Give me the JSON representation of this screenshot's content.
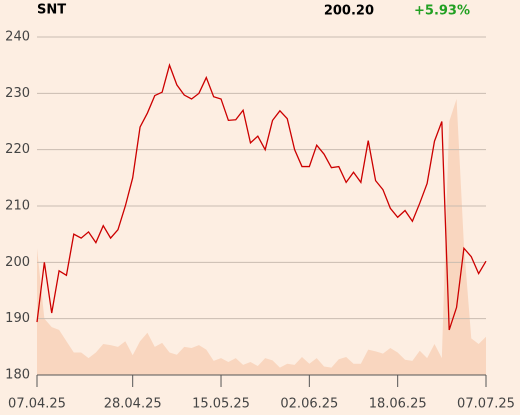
{
  "chart_data": {
    "type": "line",
    "title": "SNT",
    "last_price": "200.20",
    "change": "+5.93%",
    "change_color": "#22a022",
    "categories": [
      "07.04.25",
      null,
      null,
      null,
      null,
      null,
      null,
      null,
      null,
      null,
      null,
      null,
      null,
      "28.04.25",
      null,
      null,
      null,
      null,
      null,
      null,
      null,
      null,
      null,
      null,
      null,
      "15.05.25",
      null,
      null,
      null,
      null,
      null,
      null,
      null,
      null,
      null,
      null,
      null,
      "02.06.25",
      null,
      null,
      null,
      null,
      null,
      null,
      null,
      null,
      null,
      null,
      null,
      "18.06.25",
      null,
      null,
      null,
      null,
      null,
      null,
      null,
      null,
      null,
      null,
      null,
      "07.07.25"
    ],
    "series": [
      {
        "color": "#cc0000",
        "values": [
          189.4,
          200,
          191,
          198.5,
          197.7,
          205,
          204.3,
          205.4,
          203.5,
          206.5,
          204.3,
          205.8,
          210,
          215,
          224,
          226.5,
          229.6,
          230.2,
          235,
          231.5,
          229.7,
          229,
          230,
          232.8,
          229.4,
          229,
          225.2,
          225.3,
          227,
          221.2,
          222.4,
          220,
          225.2,
          226.9,
          225.5,
          220,
          217,
          217,
          220.8,
          219.2,
          216.8,
          217,
          214.2,
          216,
          214.2,
          221.6,
          214.5,
          212.9,
          209.6,
          208,
          209.2,
          207.3,
          210.5,
          214,
          221.5,
          225,
          188,
          192,
          202.5,
          201,
          198,
          200.2
        ]
      }
    ],
    "area": {
      "color": "#f9d6bf",
      "values": [
        202.5,
        190,
        188.5,
        188,
        186,
        184,
        184,
        183,
        184,
        185.5,
        185.3,
        185,
        186,
        183.5,
        186,
        187.5,
        185,
        185.7,
        184,
        183.6,
        185,
        184.8,
        185.3,
        184.5,
        182.5,
        183,
        182.3,
        183,
        181.8,
        182.3,
        181.6,
        183,
        182.6,
        181.3,
        182,
        181.8,
        183.2,
        182,
        183,
        181.5,
        181.3,
        182.8,
        183.2,
        182,
        182,
        184.5,
        184.2,
        183.8,
        184.8,
        184,
        182.7,
        182.5,
        184.3,
        183,
        185.5,
        183,
        225,
        229,
        203,
        186.5,
        185.5,
        186.8
      ]
    },
    "ylim": [
      180,
      240
    ],
    "yticks": [
      180,
      190,
      200,
      210,
      220,
      230,
      240
    ],
    "grid": true
  }
}
